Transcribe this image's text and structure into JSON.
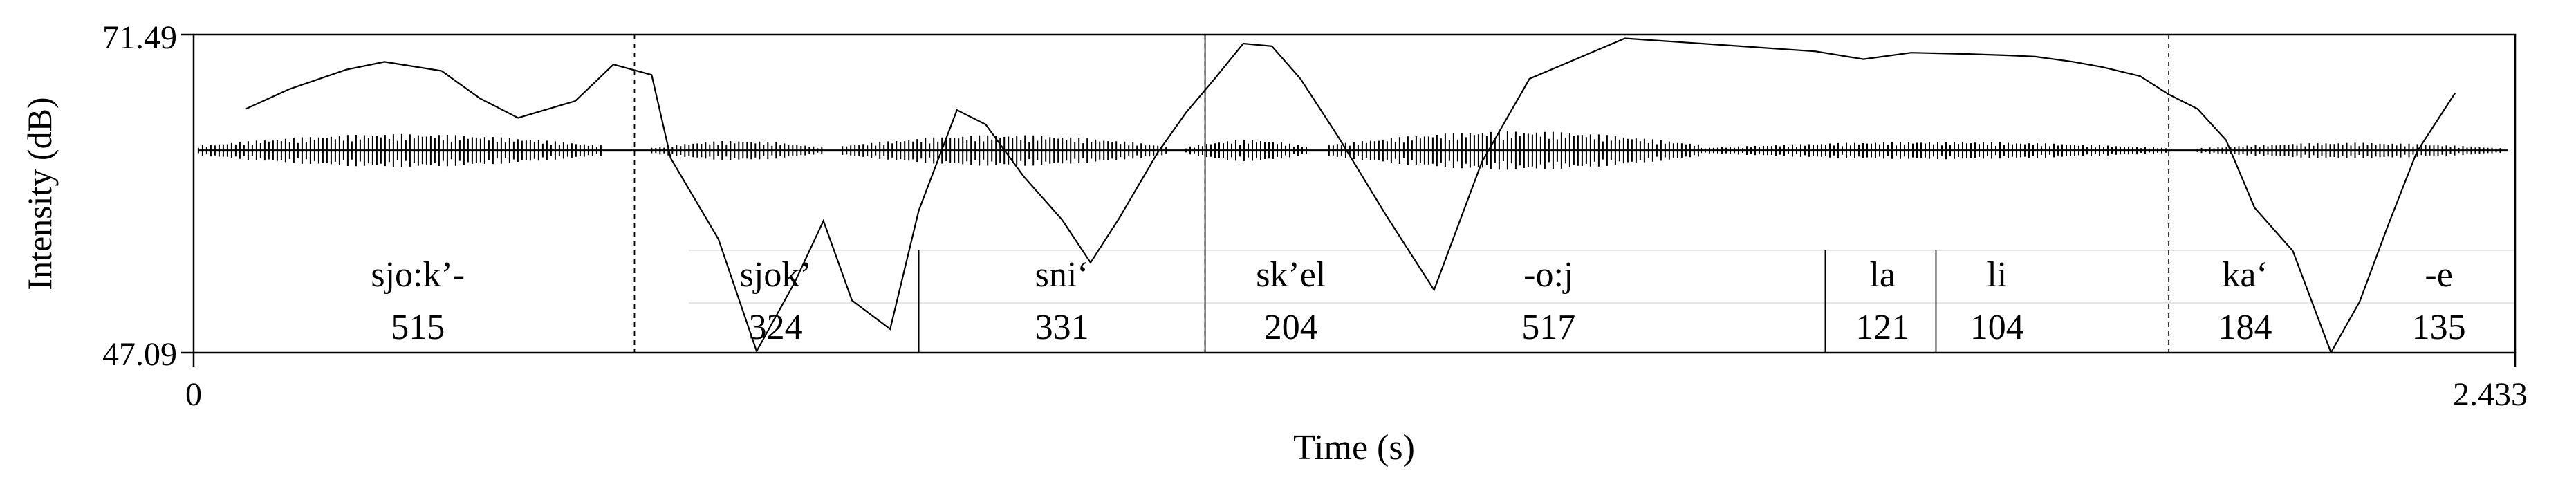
{
  "chart_data": {
    "type": "line",
    "title": "",
    "xlabel": "Time (s)",
    "ylabel": "Intensity (dB)",
    "xlim": [
      0,
      2.433
    ],
    "ylim": [
      47.09,
      71.49
    ],
    "x_tick_labels": [
      "0",
      "2.433"
    ],
    "y_tick_labels": [
      "71.49",
      "47.09"
    ],
    "grid": false,
    "legend": "none",
    "intensity_contour": {
      "x": [
        0.055,
        0.1,
        0.16,
        0.2,
        0.26,
        0.3,
        0.34,
        0.4,
        0.44,
        0.48,
        0.5,
        0.55,
        0.59,
        0.63,
        0.66,
        0.69,
        0.73,
        0.76,
        0.8,
        0.83,
        0.87,
        0.91,
        0.94,
        0.97,
        1.01,
        1.04,
        1.07,
        1.1,
        1.13,
        1.16,
        1.2,
        1.25,
        1.3,
        1.35,
        1.4,
        1.5,
        1.6,
        1.7,
        1.75,
        1.8,
        1.86,
        1.9,
        1.93,
        1.97,
        2.0,
        2.04,
        2.07,
        2.1,
        2.13,
        2.16,
        2.2,
        2.24,
        2.27,
        2.3,
        2.33,
        2.37
      ],
      "y": [
        65.8,
        67.3,
        68.8,
        69.4,
        68.7,
        66.6,
        65.1,
        66.4,
        69.2,
        68.4,
        62.0,
        55.8,
        47.2,
        52.5,
        57.2,
        51.1,
        48.9,
        58.0,
        65.7,
        64.6,
        60.6,
        57.3,
        54.0,
        57.4,
        62.4,
        65.5,
        68.1,
        70.8,
        70.6,
        68.1,
        63.6,
        57.6,
        51.9,
        61.7,
        68.1,
        71.2,
        70.7,
        70.2,
        69.6,
        70.1,
        70.0,
        69.9,
        69.8,
        69.4,
        69.0,
        68.3,
        66.9,
        65.8,
        63.4,
        58.2,
        54.9,
        47.1,
        51.0,
        56.9,
        62.5,
        67.0
      ]
    },
    "waveform_baseline_db": 62.6,
    "waveform_segments": [
      {
        "start": 0.005,
        "end": 0.43,
        "amplitude": 0.85
      },
      {
        "start": 0.48,
        "end": 0.66,
        "amplitude": 0.5
      },
      {
        "start": 0.68,
        "end": 1.02,
        "amplitude": 0.8
      },
      {
        "start": 1.04,
        "end": 1.17,
        "amplitude": 0.55
      },
      {
        "start": 1.19,
        "end": 1.58,
        "amplitude": 1.0
      },
      {
        "start": 1.58,
        "end": 2.07,
        "amplitude": 0.45
      },
      {
        "start": 2.1,
        "end": 2.42,
        "amplitude": 0.4
      }
    ],
    "segmentation_tier": {
      "boundaries_solid": [
        0.76,
        1.71,
        1.826
      ],
      "boundaries_solid_full_height": [
        1.06
      ],
      "boundaries_dashed_full_height": [
        0.462,
        1.06,
        2.07
      ],
      "segments": [
        {
          "label": "sjo:k’-",
          "duration": "515",
          "x": 0.235
        },
        {
          "label": "sjok’",
          "duration": "324",
          "x": 0.61
        },
        {
          "label": "sni‘",
          "duration": "331",
          "x": 0.91
        },
        {
          "label": "sk’el",
          "duration": "204",
          "x": 1.15
        },
        {
          "label": "-o:j",
          "duration": "517",
          "x": 1.42
        },
        {
          "label": "la",
          "duration": "121",
          "x": 1.77
        },
        {
          "label": "li",
          "duration": "104",
          "x": 1.89
        },
        {
          "label": "ka‘",
          "duration": "184",
          "x": 2.15
        },
        {
          "label": "-e",
          "duration": "135",
          "x": 2.353
        }
      ]
    }
  }
}
